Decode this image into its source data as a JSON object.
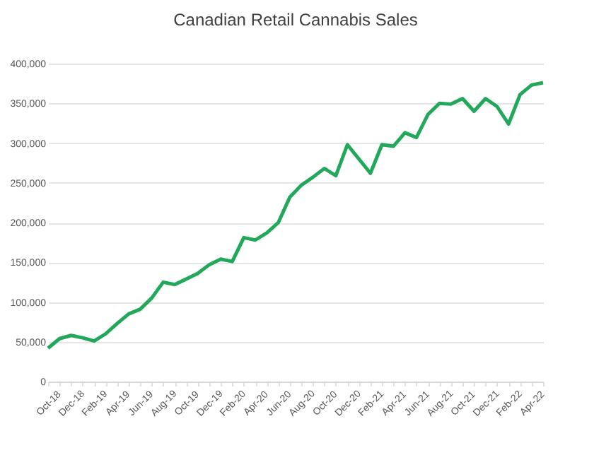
{
  "chart_data": {
    "type": "line",
    "title": "Canadian Retail Cannabis Sales",
    "categories": [
      "Oct-18",
      null,
      "Dec-18",
      null,
      "Feb-19",
      null,
      "Apr-19",
      null,
      "Jun-19",
      null,
      "Aug-19",
      null,
      "Oct-19",
      null,
      "Dec-19",
      null,
      "Feb-20",
      null,
      "Apr-20",
      null,
      "Jun-20",
      null,
      "Aug-20",
      null,
      "Oct-20",
      null,
      "Dec-20",
      null,
      "Feb-21",
      null,
      "Apr-21",
      null,
      "Jun-21",
      null,
      "Aug-21",
      null,
      "Oct-21",
      null,
      "Dec-21",
      null,
      "Feb-22",
      null,
      "Apr-22",
      null
    ],
    "series": [
      {
        "color": "#22a85a",
        "values": [
          42000,
          54000,
          58000,
          55000,
          51000,
          60000,
          73000,
          85000,
          91000,
          105000,
          125000,
          122000,
          129000,
          136000,
          147000,
          154000,
          151000,
          181000,
          178000,
          187000,
          200000,
          232000,
          247000,
          257000,
          268000,
          259000,
          298000,
          280000,
          262000,
          298000,
          296000,
          313000,
          307000,
          336000,
          350000,
          349000,
          356000,
          340000,
          356000,
          346000,
          324000,
          361000,
          373000,
          376000
        ]
      }
    ],
    "ylim": [
      0,
      400000
    ],
    "yticks": [
      0,
      {
        "value": 50000,
        "label": "50,000"
      },
      {
        "value": 100000,
        "label": "100,000"
      },
      {
        "value": 150000,
        "label": "150,000"
      },
      {
        "value": 200000,
        "label": "200,000"
      },
      {
        "value": 250000,
        "label": "250,000"
      },
      {
        "value": 300000,
        "label": "300,000"
      },
      {
        "value": 350000,
        "label": "350,000"
      },
      {
        "value": 400000,
        "label": "400,000"
      }
    ],
    "grid": "y",
    "marker": "none",
    "line_style": "solid"
  }
}
